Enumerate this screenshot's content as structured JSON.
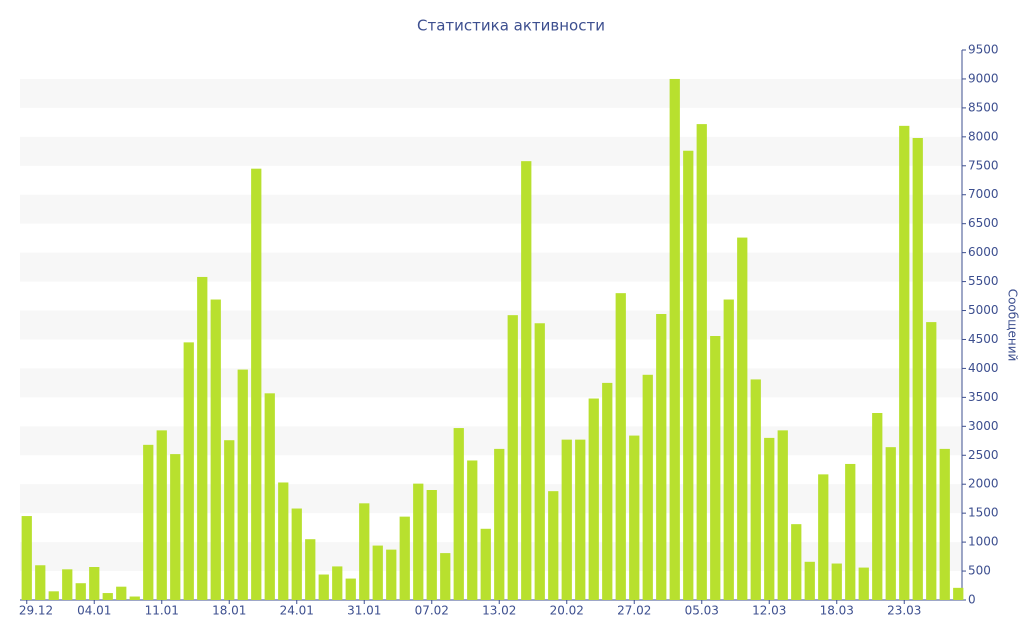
{
  "chart_data": {
    "type": "bar",
    "title": "Статистика активности",
    "y_label": "Сообщений",
    "categories": [
      "29.12",
      null,
      null,
      null,
      null,
      "04.01",
      null,
      null,
      null,
      null,
      "11.01",
      null,
      null,
      null,
      null,
      "18.01",
      null,
      null,
      null,
      null,
      "24.01",
      null,
      null,
      null,
      null,
      "31.01",
      null,
      null,
      null,
      null,
      "07.02",
      null,
      null,
      null,
      null,
      "13.02",
      null,
      null,
      null,
      null,
      "20.02",
      null,
      null,
      null,
      null,
      "27.02",
      null,
      null,
      null,
      null,
      "05.03",
      null,
      null,
      null,
      null,
      "12.03",
      null,
      null,
      null,
      null,
      "18.03",
      null,
      null,
      null,
      null,
      "23.03",
      null,
      null,
      null,
      null
    ],
    "values": [
      1450,
      600,
      150,
      530,
      290,
      570,
      120,
      230,
      60,
      2680,
      2930,
      2520,
      4450,
      5580,
      5190,
      2760,
      3980,
      7450,
      3570,
      2030,
      1580,
      1050,
      440,
      580,
      370,
      1670,
      940,
      870,
      1440,
      2010,
      1900,
      810,
      2970,
      2410,
      1230,
      2610,
      4920,
      7580,
      4780,
      1880,
      2770,
      2770,
      3480,
      3750,
      5300,
      2840,
      3890,
      4940,
      9000,
      7760,
      8220,
      4560,
      5190,
      6260,
      3810,
      2800,
      2930,
      1310,
      660,
      2170,
      630,
      2350,
      560,
      3230,
      2640,
      8190,
      7980,
      4800,
      2610,
      210
    ],
    "color": "#b8e02e",
    "ylim": [
      0,
      9500
    ],
    "yticks": [
      0,
      500,
      1000,
      1500,
      2000,
      2500,
      3000,
      3500,
      4000,
      4500,
      5000,
      5500,
      6000,
      6500,
      7000,
      7500,
      8000,
      8500,
      9000,
      9500
    ],
    "y_axis_side": "right",
    "grid": true
  }
}
